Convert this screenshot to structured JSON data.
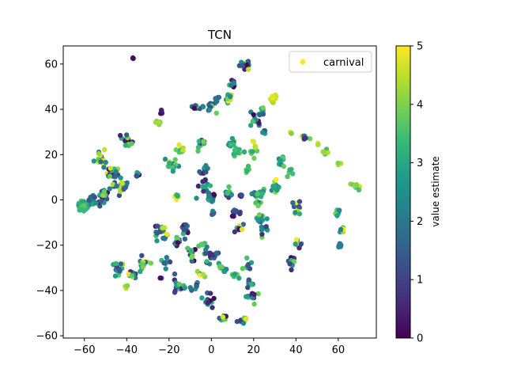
{
  "chart_data": {
    "type": "scatter",
    "title": "TCN",
    "xlabel": "",
    "ylabel": "",
    "xlim": [
      -70,
      78
    ],
    "ylim": [
      -61,
      68
    ],
    "xticks": [
      -60,
      -40,
      -20,
      0,
      20,
      40,
      60
    ],
    "yticks": [
      -60,
      -40,
      -20,
      0,
      20,
      40,
      60
    ],
    "grid": false,
    "legend": {
      "location": "top-right",
      "entries": [
        "carnival"
      ],
      "marker_color": "#fde725"
    },
    "colorbar": {
      "label": "value estimate",
      "min": 0,
      "max": 5,
      "ticks": [
        0,
        1,
        2,
        3,
        4,
        5
      ],
      "colormap": "viridis"
    },
    "clusters": [
      {
        "x": -37,
        "y": 62.5,
        "n": 3,
        "spread": 0.4,
        "vmin": 0,
        "vmax": 0.3
      },
      {
        "x": 16,
        "y": 60,
        "n": 14,
        "spread": 2.2,
        "vmin": 0,
        "vmax": 5
      },
      {
        "x": 10,
        "y": 51,
        "n": 10,
        "spread": 1.5,
        "vmin": 0,
        "vmax": 4
      },
      {
        "x": 8,
        "y": 45,
        "n": 12,
        "spread": 1.5,
        "vmin": 2,
        "vmax": 5
      },
      {
        "x": 29,
        "y": 45,
        "n": 12,
        "spread": 1.5,
        "vmin": 4,
        "vmax": 5
      },
      {
        "x": 3,
        "y": 44,
        "n": 6,
        "spread": 1.2,
        "vmin": 1,
        "vmax": 4
      },
      {
        "x": -7,
        "y": 41,
        "n": 10,
        "spread": 2,
        "vmin": 0,
        "vmax": 4
      },
      {
        "x": -24,
        "y": 38.5,
        "n": 4,
        "spread": 1,
        "vmin": 0,
        "vmax": 1
      },
      {
        "x": 0,
        "y": 41,
        "n": 12,
        "spread": 2,
        "vmin": 1,
        "vmax": 4
      },
      {
        "x": 24,
        "y": 40,
        "n": 5,
        "spread": 1.2,
        "vmin": 2,
        "vmax": 4
      },
      {
        "x": 21,
        "y": 35,
        "n": 14,
        "spread": 2.5,
        "vmin": 0,
        "vmax": 4
      },
      {
        "x": -25,
        "y": 34,
        "n": 6,
        "spread": 1.3,
        "vmin": 3,
        "vmax": 5
      },
      {
        "x": 25,
        "y": 30,
        "n": 5,
        "spread": 1.2,
        "vmin": 1,
        "vmax": 3
      },
      {
        "x": 38,
        "y": 30,
        "n": 4,
        "spread": 1,
        "vmin": 3,
        "vmax": 5
      },
      {
        "x": 44,
        "y": 28,
        "n": 8,
        "spread": 1.5,
        "vmin": 0,
        "vmax": 5
      },
      {
        "x": 50,
        "y": 25,
        "n": 3,
        "spread": 0.8,
        "vmin": 4,
        "vmax": 5
      },
      {
        "x": 54,
        "y": 21,
        "n": 8,
        "spread": 1.2,
        "vmin": 3,
        "vmax": 5
      },
      {
        "x": 60,
        "y": 16,
        "n": 4,
        "spread": 0.8,
        "vmin": 4,
        "vmax": 5
      },
      {
        "x": 69,
        "y": 6,
        "n": 8,
        "spread": 1.5,
        "vmin": 3,
        "vmax": 5
      },
      {
        "x": -40,
        "y": 26,
        "n": 14,
        "spread": 2,
        "vmin": 0,
        "vmax": 5
      },
      {
        "x": -52,
        "y": 18,
        "n": 18,
        "spread": 2.5,
        "vmin": 1,
        "vmax": 5
      },
      {
        "x": -46,
        "y": 12,
        "n": 22,
        "spread": 3,
        "vmin": 0,
        "vmax": 5
      },
      {
        "x": -35,
        "y": 11,
        "n": 6,
        "spread": 1.2,
        "vmin": 0,
        "vmax": 5
      },
      {
        "x": -43,
        "y": 6,
        "n": 18,
        "spread": 3,
        "vmin": 0,
        "vmax": 5
      },
      {
        "x": -52,
        "y": 2,
        "n": 20,
        "spread": 3,
        "vmin": 0,
        "vmax": 5
      },
      {
        "x": -61,
        "y": -3,
        "n": 45,
        "spread": 2.2,
        "vmin": 2.5,
        "vmax": 4
      },
      {
        "x": -56,
        "y": 0,
        "n": 12,
        "spread": 2,
        "vmin": 1,
        "vmax": 3
      },
      {
        "x": -15,
        "y": 22,
        "n": 8,
        "spread": 1.8,
        "vmin": 3,
        "vmax": 5
      },
      {
        "x": -5,
        "y": 25,
        "n": 10,
        "spread": 2,
        "vmin": 1,
        "vmax": 4
      },
      {
        "x": 9,
        "y": 25,
        "n": 10,
        "spread": 2.5,
        "vmin": 2,
        "vmax": 5
      },
      {
        "x": 20,
        "y": 24,
        "n": 6,
        "spread": 1.5,
        "vmin": 3,
        "vmax": 5
      },
      {
        "x": 12,
        "y": 21,
        "n": 8,
        "spread": 2,
        "vmin": 3,
        "vmax": 4
      },
      {
        "x": -19,
        "y": 16,
        "n": 14,
        "spread": 2.5,
        "vmin": 2,
        "vmax": 5
      },
      {
        "x": -3,
        "y": 13,
        "n": 10,
        "spread": 2,
        "vmin": 0,
        "vmax": 3
      },
      {
        "x": 19,
        "y": 20,
        "n": 6,
        "spread": 2,
        "vmin": 3,
        "vmax": 4
      },
      {
        "x": 33,
        "y": 17,
        "n": 10,
        "spread": 2,
        "vmin": 2,
        "vmax": 4
      },
      {
        "x": 37,
        "y": 12,
        "n": 6,
        "spread": 1.5,
        "vmin": 3,
        "vmax": 4
      },
      {
        "x": 17,
        "y": 13,
        "n": 5,
        "spread": 1.3,
        "vmin": 3,
        "vmax": 4
      },
      {
        "x": -3,
        "y": 7,
        "n": 12,
        "spread": 2.5,
        "vmin": 0,
        "vmax": 4
      },
      {
        "x": -1,
        "y": 2,
        "n": 14,
        "spread": 2.5,
        "vmin": 0,
        "vmax": 3
      },
      {
        "x": -16,
        "y": 2,
        "n": 6,
        "spread": 1.3,
        "vmin": 3,
        "vmax": 5
      },
      {
        "x": 8,
        "y": 2,
        "n": 10,
        "spread": 2,
        "vmin": 0,
        "vmax": 5
      },
      {
        "x": 14,
        "y": 2,
        "n": 6,
        "spread": 1.5,
        "vmin": 0,
        "vmax": 2
      },
      {
        "x": 21,
        "y": 3,
        "n": 12,
        "spread": 2.5,
        "vmin": 2,
        "vmax": 4
      },
      {
        "x": 30,
        "y": 6,
        "n": 14,
        "spread": 2.5,
        "vmin": 2,
        "vmax": 5
      },
      {
        "x": 22,
        "y": -2,
        "n": 6,
        "spread": 1.5,
        "vmin": 2,
        "vmax": 4
      },
      {
        "x": 40,
        "y": -3,
        "n": 12,
        "spread": 2.5,
        "vmin": 0,
        "vmax": 5
      },
      {
        "x": 59,
        "y": -6,
        "n": 8,
        "spread": 1.5,
        "vmin": 2,
        "vmax": 4
      },
      {
        "x": 1,
        "y": -6,
        "n": 4,
        "spread": 1,
        "vmin": 1,
        "vmax": 3
      },
      {
        "x": 12,
        "y": -6,
        "n": 12,
        "spread": 2,
        "vmin": 0,
        "vmax": 2
      },
      {
        "x": 23,
        "y": -8,
        "n": 12,
        "spread": 2,
        "vmin": 0,
        "vmax": 4
      },
      {
        "x": 62,
        "y": -13,
        "n": 8,
        "spread": 1.5,
        "vmin": 2,
        "vmax": 5
      },
      {
        "x": 61,
        "y": -20,
        "n": 5,
        "spread": 1,
        "vmin": 1,
        "vmax": 3
      },
      {
        "x": 13,
        "y": -13,
        "n": 8,
        "spread": 2,
        "vmin": 0,
        "vmax": 5
      },
      {
        "x": 24,
        "y": -13,
        "n": 8,
        "spread": 2,
        "vmin": 0,
        "vmax": 4
      },
      {
        "x": 41,
        "y": -19,
        "n": 8,
        "spread": 2,
        "vmin": 0,
        "vmax": 5
      },
      {
        "x": -24,
        "y": -13,
        "n": 20,
        "spread": 2.5,
        "vmin": 0,
        "vmax": 5
      },
      {
        "x": -12,
        "y": -13,
        "n": 16,
        "spread": 2.5,
        "vmin": 0,
        "vmax": 4
      },
      {
        "x": -16,
        "y": -19,
        "n": 10,
        "spread": 2,
        "vmin": 0,
        "vmax": 4
      },
      {
        "x": -10,
        "y": -24,
        "n": 12,
        "spread": 2.5,
        "vmin": 0,
        "vmax": 4
      },
      {
        "x": -4,
        "y": -20,
        "n": 6,
        "spread": 1.8,
        "vmin": 2,
        "vmax": 4
      },
      {
        "x": 0,
        "y": -25,
        "n": 16,
        "spread": 3,
        "vmin": 0,
        "vmax": 4
      },
      {
        "x": 5,
        "y": -30,
        "n": 8,
        "spread": 2,
        "vmin": 1,
        "vmax": 4
      },
      {
        "x": 17,
        "y": -28,
        "n": 8,
        "spread": 2.5,
        "vmin": 0,
        "vmax": 4
      },
      {
        "x": 12,
        "y": -34,
        "n": 6,
        "spread": 1.5,
        "vmin": 2,
        "vmax": 5
      },
      {
        "x": 18,
        "y": -37,
        "n": 8,
        "spread": 2,
        "vmin": 1,
        "vmax": 4
      },
      {
        "x": 19,
        "y": -43,
        "n": 12,
        "spread": 2.5,
        "vmin": 0,
        "vmax": 4
      },
      {
        "x": 38,
        "y": -27,
        "n": 12,
        "spread": 2,
        "vmin": 0,
        "vmax": 4
      },
      {
        "x": -44,
        "y": -31,
        "n": 14,
        "spread": 2.5,
        "vmin": 0,
        "vmax": 5
      },
      {
        "x": -32,
        "y": -28,
        "n": 16,
        "spread": 2.5,
        "vmin": 1,
        "vmax": 5
      },
      {
        "x": -37,
        "y": -33,
        "n": 10,
        "spread": 2,
        "vmin": 0,
        "vmax": 5
      },
      {
        "x": -22,
        "y": -28,
        "n": 8,
        "spread": 2,
        "vmin": 1,
        "vmax": 4
      },
      {
        "x": -40,
        "y": -38,
        "n": 3,
        "spread": 0.8,
        "vmin": 4,
        "vmax": 5
      },
      {
        "x": -24,
        "y": -34,
        "n": 2,
        "spread": 0.5,
        "vmin": 0,
        "vmax": 1
      },
      {
        "x": -15,
        "y": -38,
        "n": 16,
        "spread": 2.5,
        "vmin": 0,
        "vmax": 4
      },
      {
        "x": -8,
        "y": -38,
        "n": 8,
        "spread": 2,
        "vmin": 0,
        "vmax": 3
      },
      {
        "x": -5,
        "y": -33,
        "n": 6,
        "spread": 1.5,
        "vmin": 2,
        "vmax": 5
      },
      {
        "x": -2,
        "y": -45,
        "n": 12,
        "spread": 2.5,
        "vmin": 0,
        "vmax": 4
      },
      {
        "x": 6,
        "y": -52,
        "n": 10,
        "spread": 1.8,
        "vmin": 0,
        "vmax": 5
      },
      {
        "x": 15,
        "y": -53,
        "n": 8,
        "spread": 1.5,
        "vmin": 0,
        "vmax": 5
      }
    ]
  }
}
